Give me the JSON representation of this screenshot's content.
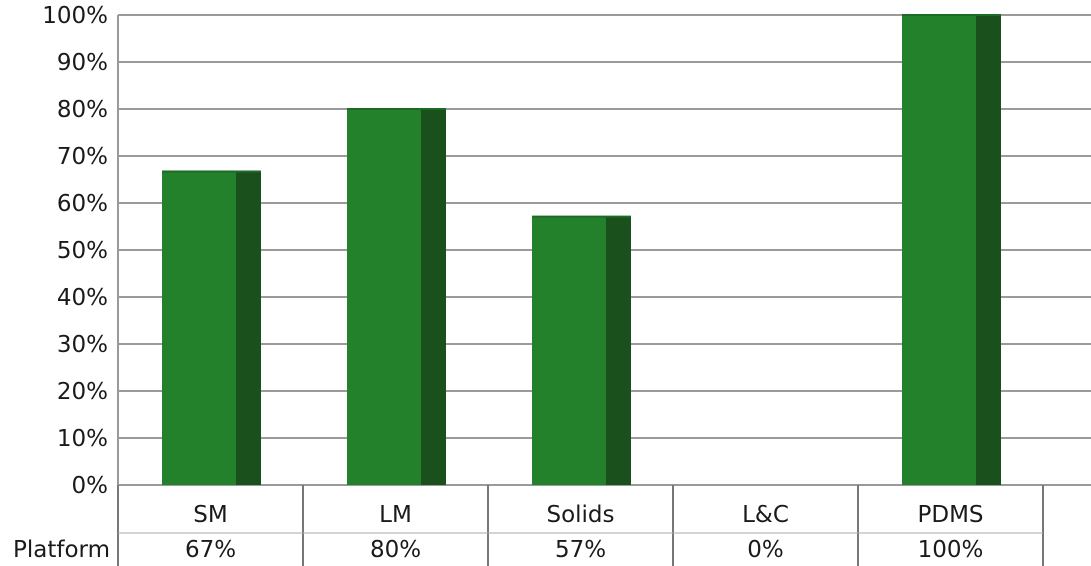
{
  "chart_data": {
    "type": "bar",
    "categories": [
      "SM",
      "LM",
      "Solids",
      "L&C",
      "PDMS"
    ],
    "series": [
      {
        "name": "Platform",
        "values": [
          66.7,
          80,
          57.1,
          0,
          100
        ]
      }
    ],
    "table_row_label": "Platform",
    "table_values": [
      "67%",
      "80%",
      "57%",
      "0%",
      "100%"
    ],
    "y_ticks": [
      "0%",
      "10%",
      "20%",
      "30%",
      "40%",
      "50%",
      "60%",
      "70%",
      "80%",
      "90%",
      "100%"
    ],
    "ylim": [
      0,
      100
    ],
    "grid": true,
    "title": "",
    "xlabel": "",
    "ylabel": "",
    "colors": {
      "bar_front": "#23802b",
      "bar_side": "#19501b",
      "grid": "#9a9a9a"
    }
  }
}
